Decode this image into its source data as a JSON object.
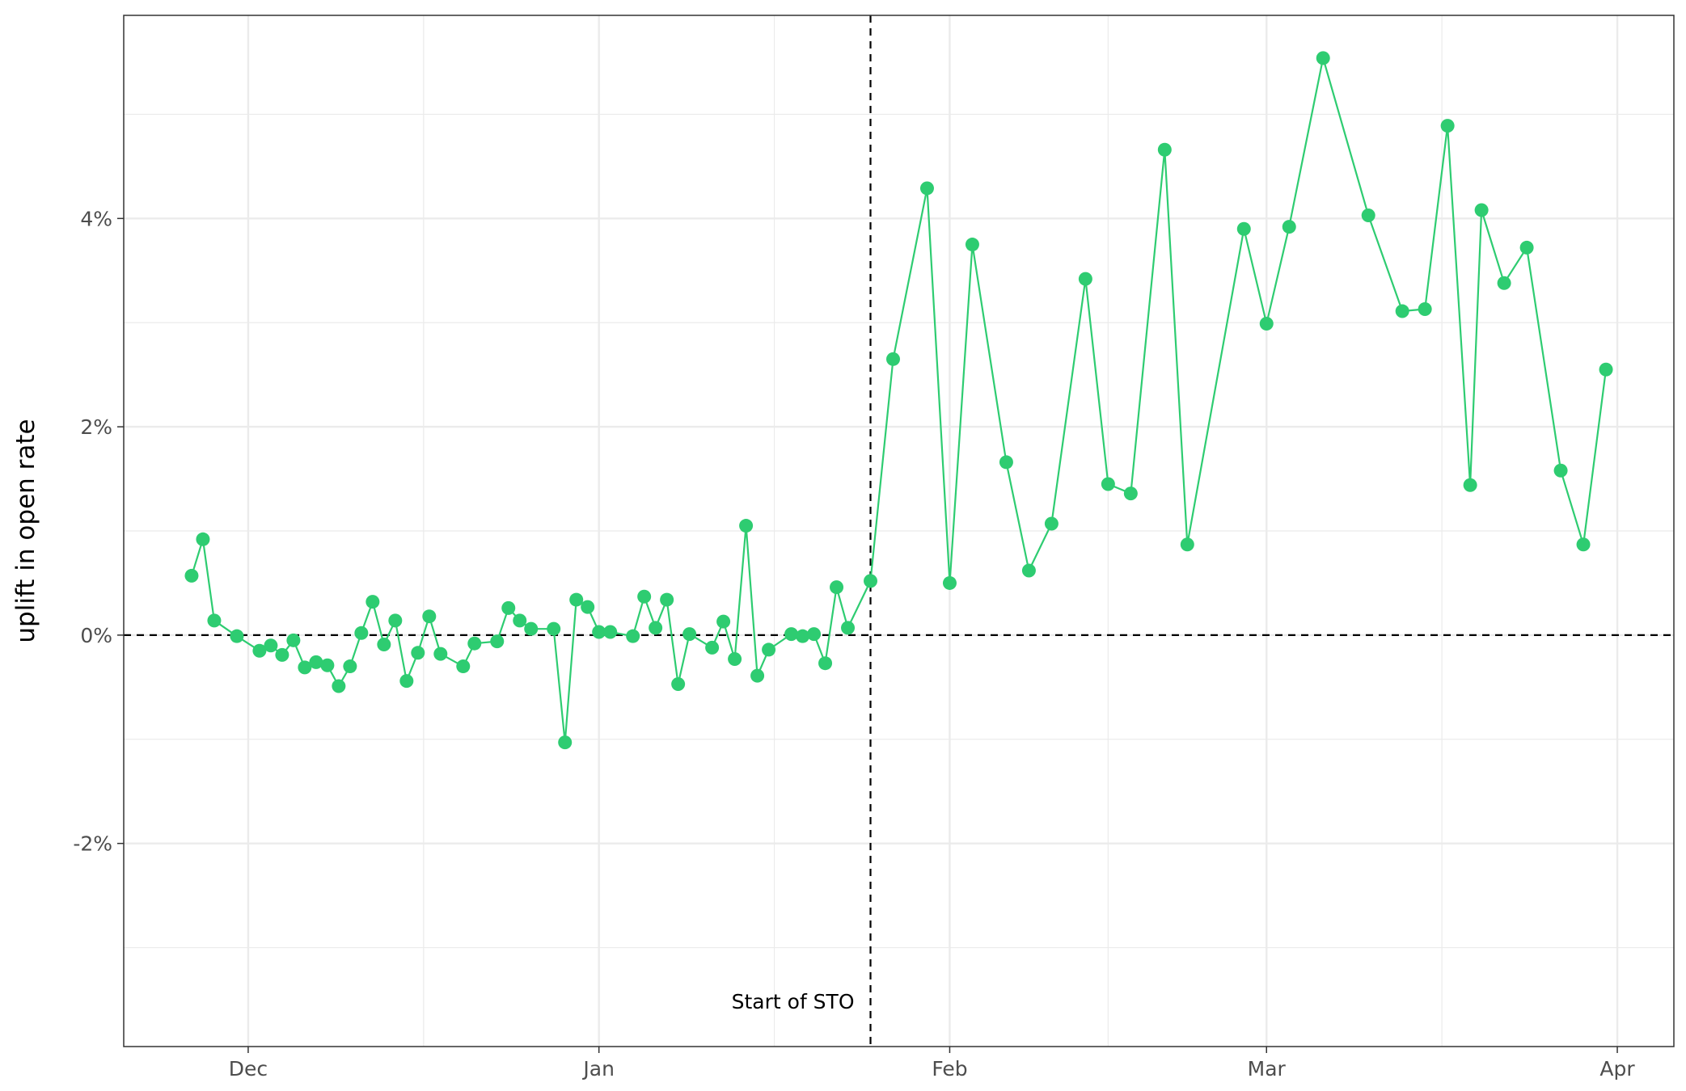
{
  "chart_data": {
    "type": "line",
    "ylabel": "uplift in open rate",
    "xlabel": "",
    "x_ticks": [
      {
        "date": "2020-12-01",
        "label": "Dec"
      },
      {
        "date": "2021-01-01",
        "label": "Jan"
      },
      {
        "date": "2021-02-01",
        "label": "Feb"
      },
      {
        "date": "2021-03-01",
        "label": "Mar"
      },
      {
        "date": "2021-04-01",
        "label": "Apr"
      }
    ],
    "y_ticks": [
      {
        "value": -2,
        "label": "-2%"
      },
      {
        "value": 0,
        "label": "0%"
      },
      {
        "value": 2,
        "label": "2%"
      },
      {
        "value": 4,
        "label": "4%"
      }
    ],
    "xlim": [
      "2020-11-20",
      "2021-04-06"
    ],
    "ylim": [
      -3.95,
      5.95
    ],
    "grid": true,
    "colors": {
      "series": "#2ecc71",
      "reference": "#000000",
      "grid": "#ebebeb",
      "border": "#333333"
    },
    "reference_lines": {
      "horizontal_y": 0,
      "vertical_x": "2021-01-25",
      "vertical_label": "Start of STO"
    },
    "series": [
      {
        "points": [
          {
            "x": "2020-11-26",
            "y": 0.57
          },
          {
            "x": "2020-11-27",
            "y": 0.92
          },
          {
            "x": "2020-11-28",
            "y": 0.14
          },
          {
            "x": "2020-11-30",
            "y": -0.01
          },
          {
            "x": "2020-12-02",
            "y": -0.15
          },
          {
            "x": "2020-12-03",
            "y": -0.1
          },
          {
            "x": "2020-12-04",
            "y": -0.19
          },
          {
            "x": "2020-12-05",
            "y": -0.05
          },
          {
            "x": "2020-12-06",
            "y": -0.31
          },
          {
            "x": "2020-12-07",
            "y": -0.26
          },
          {
            "x": "2020-12-08",
            "y": -0.29
          },
          {
            "x": "2020-12-09",
            "y": -0.49
          },
          {
            "x": "2020-12-10",
            "y": -0.3
          },
          {
            "x": "2020-12-11",
            "y": 0.02
          },
          {
            "x": "2020-12-12",
            "y": 0.32
          },
          {
            "x": "2020-12-13",
            "y": -0.09
          },
          {
            "x": "2020-12-14",
            "y": 0.14
          },
          {
            "x": "2020-12-15",
            "y": -0.44
          },
          {
            "x": "2020-12-16",
            "y": -0.17
          },
          {
            "x": "2020-12-17",
            "y": 0.18
          },
          {
            "x": "2020-12-18",
            "y": -0.18
          },
          {
            "x": "2020-12-20",
            "y": -0.3
          },
          {
            "x": "2020-12-21",
            "y": -0.08
          },
          {
            "x": "2020-12-23",
            "y": -0.06
          },
          {
            "x": "2020-12-24",
            "y": 0.26
          },
          {
            "x": "2020-12-25",
            "y": 0.14
          },
          {
            "x": "2020-12-26",
            "y": 0.06
          },
          {
            "x": "2020-12-28",
            "y": 0.06
          },
          {
            "x": "2020-12-29",
            "y": -1.03
          },
          {
            "x": "2020-12-30",
            "y": 0.34
          },
          {
            "x": "2020-12-31",
            "y": 0.27
          },
          {
            "x": "2021-01-01",
            "y": 0.03
          },
          {
            "x": "2021-01-02",
            "y": 0.03
          },
          {
            "x": "2021-01-04",
            "y": -0.01
          },
          {
            "x": "2021-01-05",
            "y": 0.37
          },
          {
            "x": "2021-01-06",
            "y": 0.07
          },
          {
            "x": "2021-01-07",
            "y": 0.34
          },
          {
            "x": "2021-01-08",
            "y": -0.47
          },
          {
            "x": "2021-01-09",
            "y": 0.01
          },
          {
            "x": "2021-01-11",
            "y": -0.12
          },
          {
            "x": "2021-01-12",
            "y": 0.13
          },
          {
            "x": "2021-01-13",
            "y": -0.23
          },
          {
            "x": "2021-01-14",
            "y": 1.05
          },
          {
            "x": "2021-01-15",
            "y": -0.39
          },
          {
            "x": "2021-01-16",
            "y": -0.14
          },
          {
            "x": "2021-01-18",
            "y": 0.01
          },
          {
            "x": "2021-01-19",
            "y": -0.01
          },
          {
            "x": "2021-01-20",
            "y": 0.01
          },
          {
            "x": "2021-01-21",
            "y": -0.27
          },
          {
            "x": "2021-01-22",
            "y": 0.46
          },
          {
            "x": "2021-01-23",
            "y": 0.07
          },
          {
            "x": "2021-01-25",
            "y": 0.52
          },
          {
            "x": "2021-01-27",
            "y": 2.65
          },
          {
            "x": "2021-01-30",
            "y": 4.29
          },
          {
            "x": "2021-02-01",
            "y": 0.5
          },
          {
            "x": "2021-02-03",
            "y": 3.75
          },
          {
            "x": "2021-02-06",
            "y": 1.66
          },
          {
            "x": "2021-02-08",
            "y": 0.62
          },
          {
            "x": "2021-02-10",
            "y": 1.07
          },
          {
            "x": "2021-02-13",
            "y": 3.42
          },
          {
            "x": "2021-02-15",
            "y": 1.45
          },
          {
            "x": "2021-02-17",
            "y": 1.36
          },
          {
            "x": "2021-02-20",
            "y": 4.66
          },
          {
            "x": "2021-02-22",
            "y": 0.87
          },
          {
            "x": "2021-02-27",
            "y": 3.9
          },
          {
            "x": "2021-03-01",
            "y": 2.99
          },
          {
            "x": "2021-03-03",
            "y": 3.92
          },
          {
            "x": "2021-03-06",
            "y": 5.54
          },
          {
            "x": "2021-03-10",
            "y": 4.03
          },
          {
            "x": "2021-03-13",
            "y": 3.11
          },
          {
            "x": "2021-03-15",
            "y": 3.13
          },
          {
            "x": "2021-03-17",
            "y": 4.89
          },
          {
            "x": "2021-03-19",
            "y": 1.44
          },
          {
            "x": "2021-03-20",
            "y": 4.08
          },
          {
            "x": "2021-03-22",
            "y": 3.38
          },
          {
            "x": "2021-03-24",
            "y": 3.72
          },
          {
            "x": "2021-03-27",
            "y": 1.58
          },
          {
            "x": "2021-03-29",
            "y": 0.87
          },
          {
            "x": "2021-03-31",
            "y": 2.55
          }
        ]
      }
    ]
  }
}
